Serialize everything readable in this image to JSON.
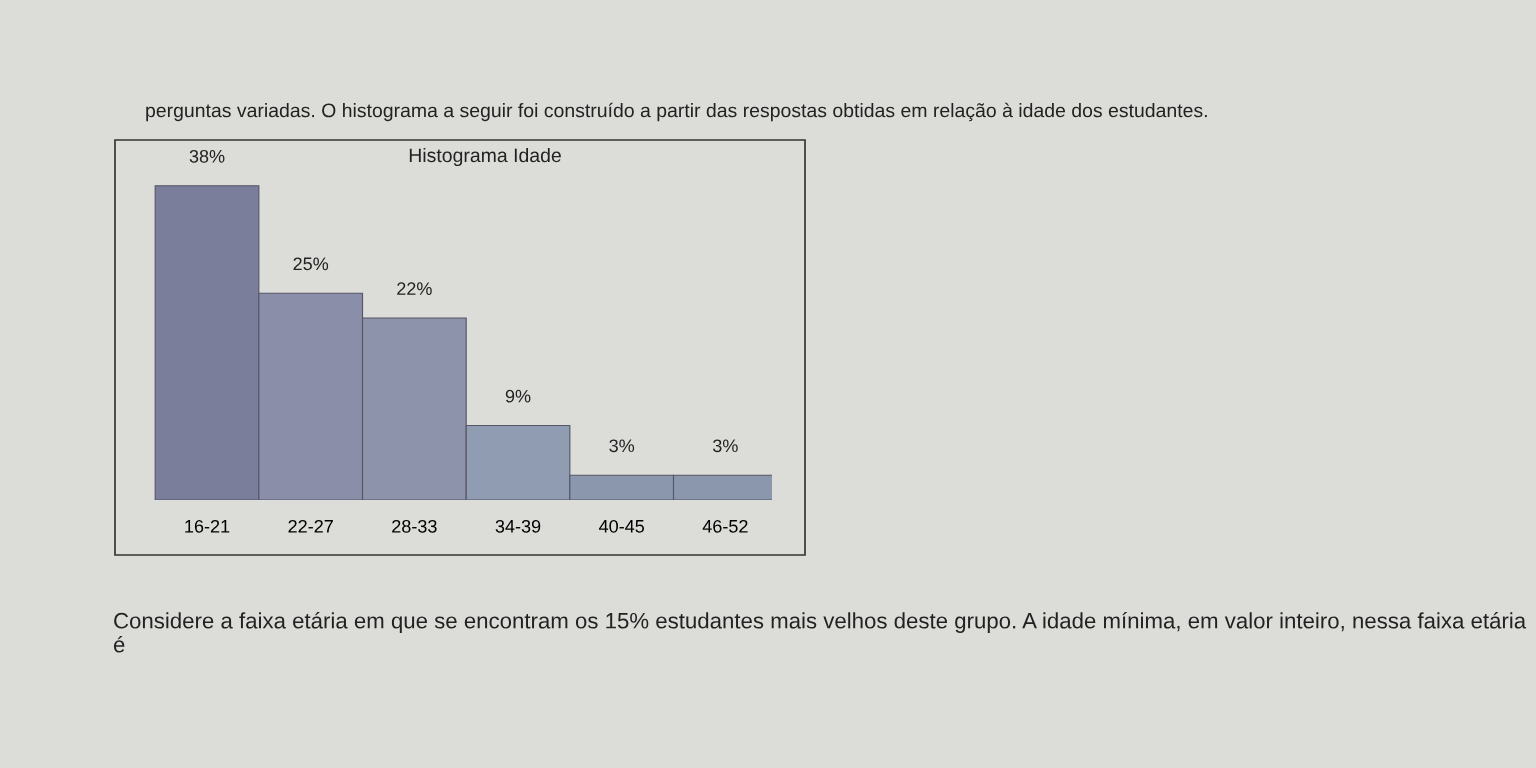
{
  "chart_data": {
    "type": "bar",
    "title": "Histograma Idade",
    "categories": [
      "16-21",
      "22-27",
      "28-33",
      "34-39",
      "40-45",
      "46-52"
    ],
    "values": [
      38,
      25,
      22,
      9,
      3,
      3
    ],
    "value_labels": [
      "38%",
      "25%",
      "22%",
      "9%",
      "3%",
      "3%"
    ],
    "colors": [
      "#7b7e9a",
      "#8a8ea8",
      "#8d93ab",
      "#8f9cb2",
      "#8a97ad",
      "#8a97ad"
    ],
    "grid": false,
    "legend": false,
    "annotations": [
      "perguntas variadas. O histograma a seguir foi construído a partir das respostas obtidas em relação à idade dos estudantes.",
      "Considere a faixa etária em que se encontram os 15% estudantes mais velhos deste grupo. A idade mínima, em valor inteiro, nessa faixa etária é"
    ]
  }
}
